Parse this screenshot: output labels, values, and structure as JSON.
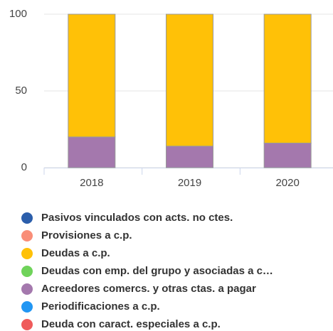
{
  "chart_data": {
    "type": "stacked_bar",
    "categories": [
      "2018",
      "2019",
      "2020"
    ],
    "series": [
      {
        "name": "Pasivos vinculados con acts. no ctes.",
        "color": "#2b5eab",
        "values": [
          0,
          0,
          0
        ]
      },
      {
        "name": "Provisiones a c.p.",
        "color": "#f98e78",
        "values": [
          0,
          0,
          0
        ]
      },
      {
        "name": "Deudas a c.p.",
        "color": "#ffc107",
        "values": [
          80,
          86,
          84
        ]
      },
      {
        "name": "Deudas con emp. del grupo y asociadas a c…",
        "color": "#6fd35a",
        "values": [
          0,
          0,
          0
        ]
      },
      {
        "name": "Acreedores comercs. y otras ctas. a pagar",
        "color": "#a478ad",
        "values": [
          20,
          14,
          16
        ]
      },
      {
        "name": "Periodificaciones a c.p.",
        "color": "#2196f3",
        "values": [
          0,
          0,
          0
        ]
      },
      {
        "name": "Deuda con caract. especiales a c.p.",
        "color": "#ef5b5b",
        "values": [
          0,
          0,
          0
        ]
      }
    ],
    "ylim": [
      0,
      100
    ],
    "yticks": [
      0,
      50,
      100
    ],
    "grid": true
  }
}
